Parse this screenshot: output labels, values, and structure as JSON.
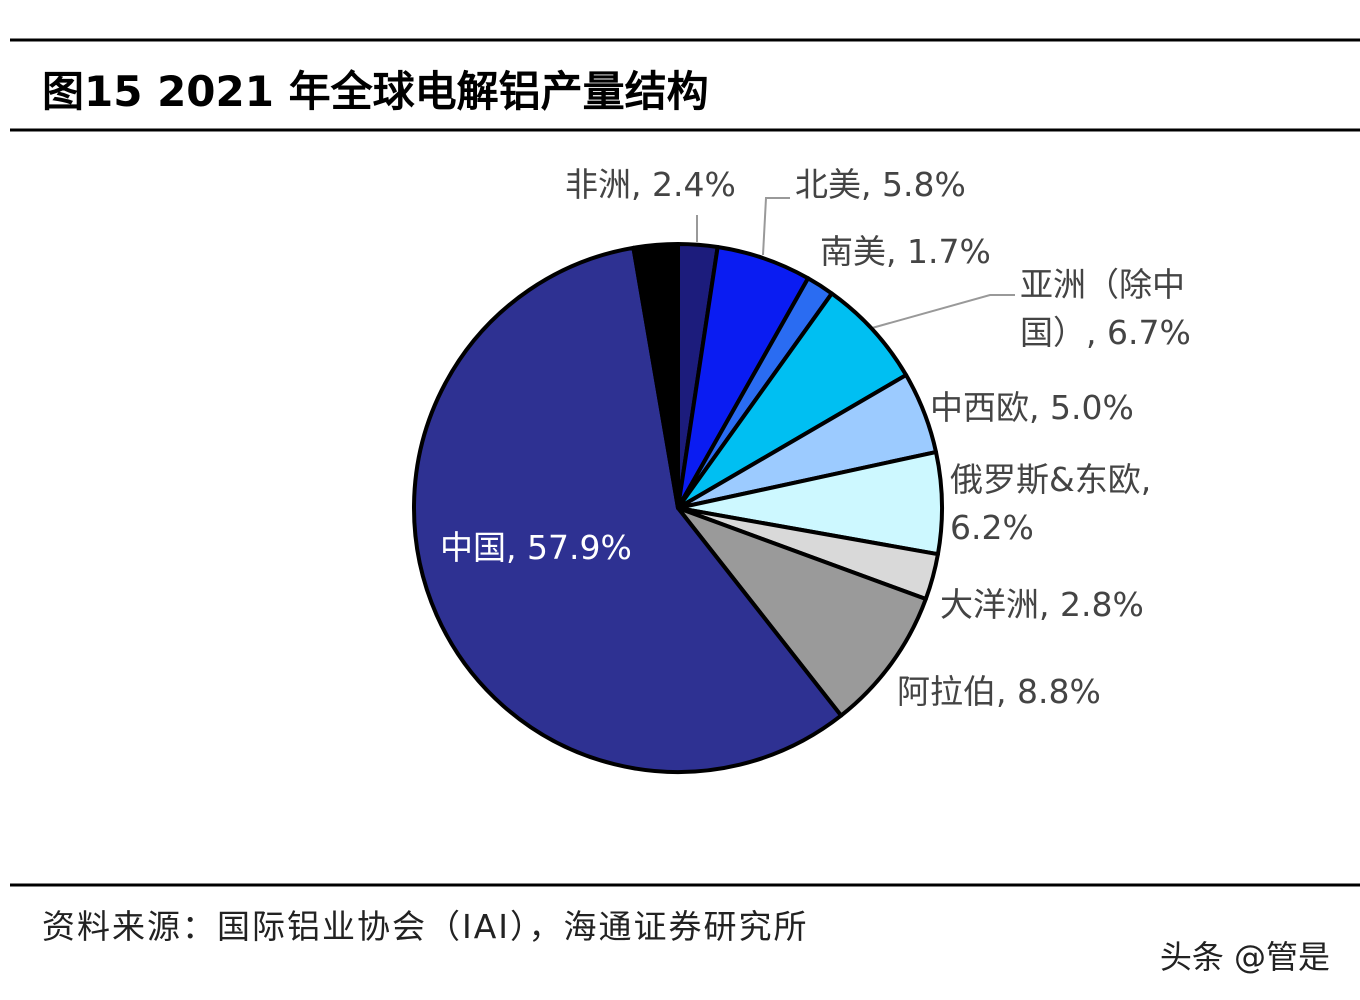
{
  "chart_data": {
    "type": "pie",
    "title": "图15 2021 年全球电解铝产量结构",
    "categories": [
      "非洲, 2.4%",
      "北美, 5.8%",
      "南美, 1.7%",
      "亚洲（除中国）, 6.7%",
      "中西欧, 5.0%",
      "俄罗斯&东欧, 6.2%",
      "大洋洲, 2.8%",
      "阿拉伯, 8.8%",
      "中国, 57.9%",
      null
    ],
    "values": [
      2.4,
      5.8,
      1.7,
      6.7,
      5.0,
      6.2,
      2.8,
      8.8,
      57.9,
      2.7
    ],
    "colors": [
      "#1c1c7c",
      "#0a1cf2",
      "#2a6cf2",
      "#00bff2",
      "#9ccbff",
      "#cdf8ff",
      "#d9d9d9",
      "#9a9a9a",
      "#2e3192",
      "#000000"
    ],
    "source": "资料来源：国际铝业协会（IAI），海通证券研究所"
  },
  "watermark": "头条 @管是"
}
